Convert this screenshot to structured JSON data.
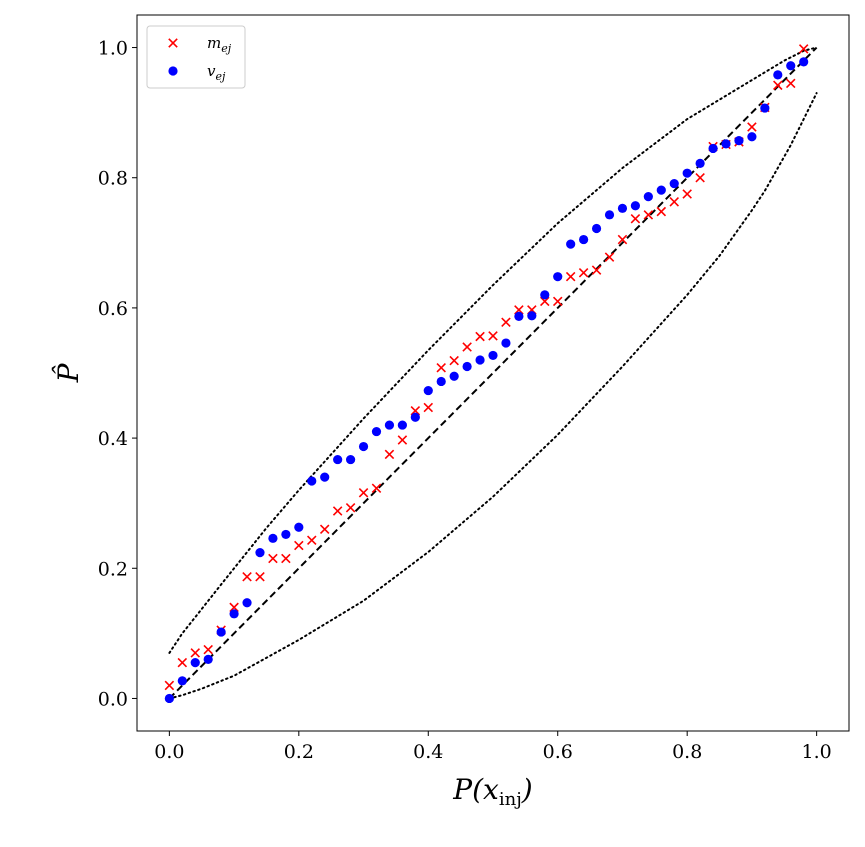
{
  "chart_data": {
    "type": "scatter",
    "xlabel": "P(x_inj)",
    "ylabel": "P̂",
    "xlim": [
      -0.05,
      1.05
    ],
    "ylim": [
      -0.05,
      1.05
    ],
    "x_ticks": [
      0.0,
      0.2,
      0.4,
      0.6,
      0.8,
      1.0
    ],
    "y_ticks": [
      0.0,
      0.2,
      0.4,
      0.6,
      0.8,
      1.0
    ],
    "x_tick_labels": [
      "0.0",
      "0.2",
      "0.4",
      "0.6",
      "0.8",
      "1.0"
    ],
    "y_tick_labels": [
      "0.0",
      "0.2",
      "0.4",
      "0.6",
      "0.8",
      "1.0"
    ],
    "legend_position": "upper-left",
    "series": [
      {
        "name": "m_ej",
        "label_base": "m",
        "label_sub": "ej",
        "marker": "x",
        "color": "#ff0000",
        "x": [
          0.0,
          0.02,
          0.04,
          0.06,
          0.08,
          0.1,
          0.12,
          0.14,
          0.16,
          0.18,
          0.2,
          0.22,
          0.24,
          0.26,
          0.28,
          0.3,
          0.32,
          0.34,
          0.36,
          0.38,
          0.4,
          0.42,
          0.44,
          0.46,
          0.48,
          0.5,
          0.52,
          0.54,
          0.56,
          0.58,
          0.6,
          0.62,
          0.64,
          0.66,
          0.68,
          0.7,
          0.72,
          0.74,
          0.76,
          0.78,
          0.8,
          0.82,
          0.84,
          0.86,
          0.88,
          0.9,
          0.92,
          0.94,
          0.96,
          0.98
        ],
        "y": [
          0.02,
          0.055,
          0.07,
          0.075,
          0.105,
          0.14,
          0.187,
          0.187,
          0.215,
          0.215,
          0.235,
          0.243,
          0.26,
          0.288,
          0.293,
          0.316,
          0.323,
          0.375,
          0.397,
          0.442,
          0.447,
          0.508,
          0.519,
          0.54,
          0.556,
          0.557,
          0.578,
          0.597,
          0.597,
          0.61,
          0.61,
          0.648,
          0.654,
          0.658,
          0.678,
          0.705,
          0.737,
          0.743,
          0.748,
          0.763,
          0.775,
          0.8,
          0.848,
          0.851,
          0.855,
          0.878,
          0.908,
          0.942,
          0.945,
          0.998
        ]
      },
      {
        "name": "v_ej",
        "label_base": "v",
        "label_sub": "ej",
        "marker": "o",
        "color": "#0000ff",
        "x": [
          0.0,
          0.02,
          0.04,
          0.06,
          0.08,
          0.1,
          0.12,
          0.14,
          0.16,
          0.18,
          0.2,
          0.22,
          0.24,
          0.26,
          0.28,
          0.3,
          0.32,
          0.34,
          0.36,
          0.38,
          0.4,
          0.42,
          0.44,
          0.46,
          0.48,
          0.5,
          0.52,
          0.54,
          0.56,
          0.58,
          0.6,
          0.62,
          0.64,
          0.66,
          0.68,
          0.7,
          0.72,
          0.74,
          0.76,
          0.78,
          0.8,
          0.82,
          0.84,
          0.86,
          0.88,
          0.9,
          0.92,
          0.94,
          0.96,
          0.98
        ],
        "y": [
          0.0,
          0.027,
          0.055,
          0.06,
          0.102,
          0.13,
          0.147,
          0.224,
          0.246,
          0.252,
          0.263,
          0.334,
          0.34,
          0.367,
          0.367,
          0.387,
          0.41,
          0.42,
          0.42,
          0.432,
          0.473,
          0.487,
          0.495,
          0.51,
          0.52,
          0.527,
          0.546,
          0.587,
          0.588,
          0.62,
          0.648,
          0.698,
          0.705,
          0.722,
          0.743,
          0.753,
          0.757,
          0.771,
          0.781,
          0.791,
          0.807,
          0.822,
          0.845,
          0.852,
          0.857,
          0.863,
          0.907,
          0.958,
          0.972,
          0.978
        ]
      }
    ],
    "reference_line": {
      "x": [
        0.0,
        1.0
      ],
      "y": [
        0.0,
        1.0
      ],
      "style": "dashed",
      "color": "#000000"
    },
    "confidence_band": {
      "style": "dotted",
      "color": "#000000",
      "upper_x": [
        0.0,
        0.02,
        0.04,
        0.06,
        0.08,
        0.1,
        0.15,
        0.2,
        0.3,
        0.4,
        0.5,
        0.6,
        0.7,
        0.8,
        0.9,
        0.95,
        0.98,
        1.0
      ],
      "upper_y": [
        0.07,
        0.1,
        0.125,
        0.15,
        0.175,
        0.2,
        0.262,
        0.32,
        0.43,
        0.535,
        0.635,
        0.73,
        0.815,
        0.89,
        0.95,
        0.98,
        0.995,
        1.0
      ],
      "lower_x": [
        0.0,
        0.02,
        0.05,
        0.1,
        0.2,
        0.3,
        0.4,
        0.5,
        0.6,
        0.7,
        0.8,
        0.85,
        0.9,
        0.92,
        0.94,
        0.96,
        0.98,
        1.0
      ],
      "lower_y": [
        0.0,
        0.005,
        0.015,
        0.035,
        0.09,
        0.15,
        0.225,
        0.31,
        0.405,
        0.51,
        0.62,
        0.68,
        0.75,
        0.78,
        0.815,
        0.85,
        0.89,
        0.93
      ]
    }
  }
}
